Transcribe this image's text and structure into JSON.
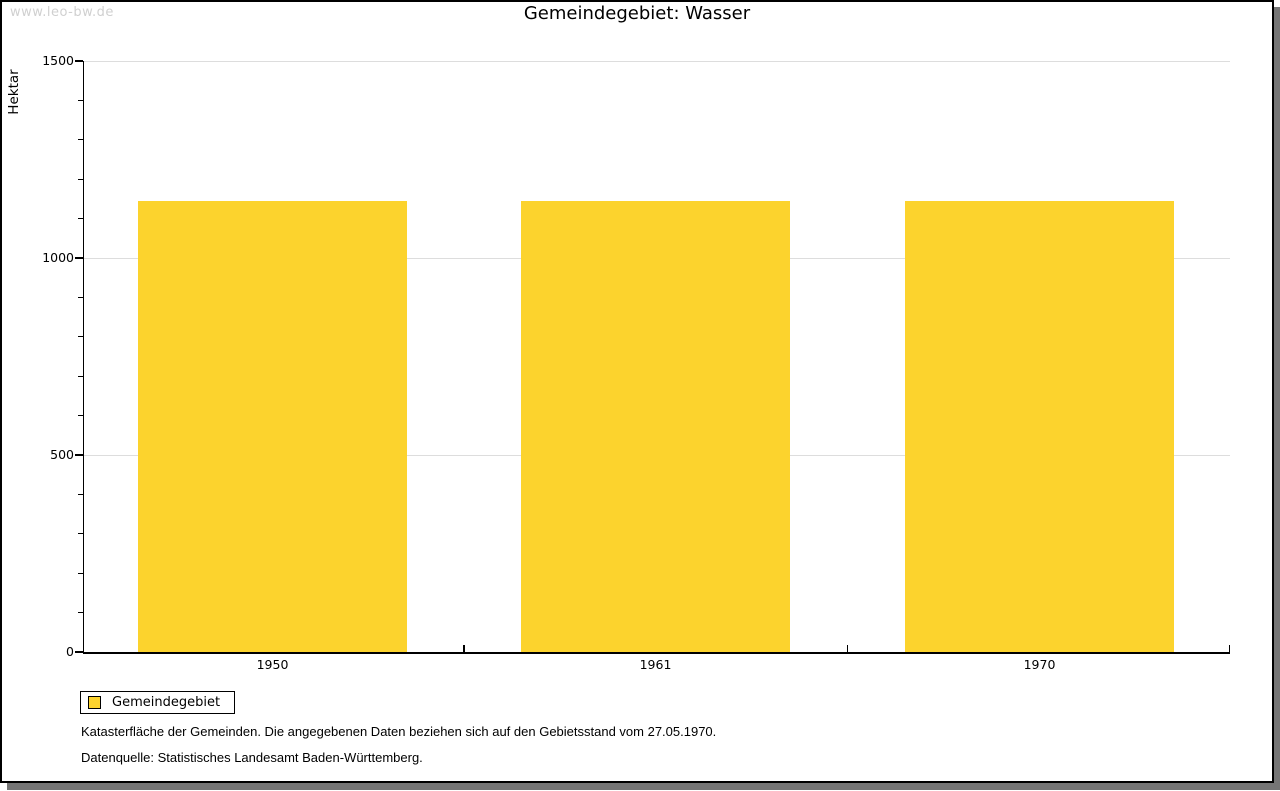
{
  "page": {
    "watermark": "www.leo-bw.de"
  },
  "chart_data": {
    "type": "bar",
    "title": "Gemeindegebiet: Wasser",
    "categories": [
      "1950",
      "1961",
      "1970"
    ],
    "series": [
      {
        "name": "Gemeindegebiet",
        "color": "#fcd32d",
        "values": [
          1145,
          1145,
          1145
        ]
      }
    ],
    "xlabel": "",
    "ylabel": "Hektar",
    "ylim": [
      0,
      1500
    ],
    "yticks": [
      0,
      500,
      1000,
      1500
    ],
    "minor_tick_interval": 100,
    "grid": true,
    "gridline_color": "#dddddd",
    "legend_position": "bottom-left"
  },
  "footer": {
    "line1": "Katasterfläche der Gemeinden. Die angegebenen Daten beziehen sich auf den Gebietsstand vom 27.05.1970.",
    "line2": "Datenquelle: Statistisches Landesamt Baden-Württemberg."
  }
}
